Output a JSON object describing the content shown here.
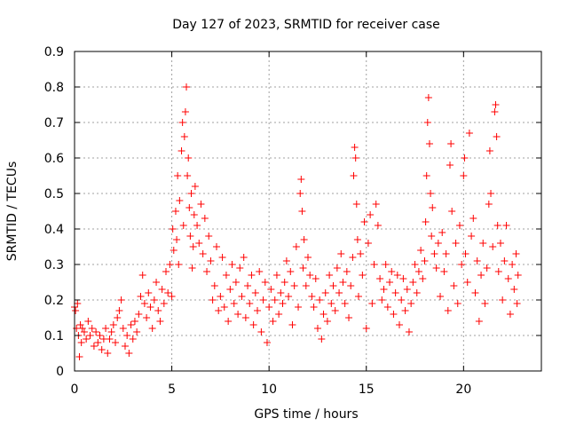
{
  "chart_data": {
    "type": "scatter",
    "title": "Day 127 of 2023, SRMTID for receiver case",
    "xlabel": "GPS time / hours",
    "ylabel": "SRMTID / TECUs",
    "xlim": [
      0,
      24
    ],
    "ylim": [
      0,
      0.9
    ],
    "xticks": [
      0,
      5,
      10,
      15,
      20
    ],
    "xtick_labels": [
      "0",
      "5",
      "10",
      "15",
      "20"
    ],
    "yticks": [
      0,
      0.1,
      0.2,
      0.3,
      0.4,
      0.5,
      0.6,
      0.7,
      0.8,
      0.9
    ],
    "ytick_labels": [
      "0",
      "0.1",
      "0.2",
      "0.3",
      "0.4",
      "0.5",
      "0.6",
      "0.7",
      "0.8",
      "0.9"
    ],
    "grid": true,
    "marker": "+",
    "color": "#ff0000",
    "series": [
      {
        "name": "SRMTID",
        "points": [
          [
            0.0,
            0.18
          ],
          [
            0.05,
            0.17
          ],
          [
            0.1,
            0.12
          ],
          [
            0.15,
            0.19
          ],
          [
            0.2,
            0.1
          ],
          [
            0.25,
            0.04
          ],
          [
            0.3,
            0.13
          ],
          [
            0.35,
            0.08
          ],
          [
            0.4,
            0.12
          ],
          [
            0.5,
            0.11
          ],
          [
            0.6,
            0.09
          ],
          [
            0.7,
            0.14
          ],
          [
            0.8,
            0.1
          ],
          [
            0.9,
            0.12
          ],
          [
            1.0,
            0.07
          ],
          [
            1.1,
            0.11
          ],
          [
            1.2,
            0.08
          ],
          [
            1.3,
            0.1
          ],
          [
            1.4,
            0.06
          ],
          [
            1.5,
            0.09
          ],
          [
            1.6,
            0.12
          ],
          [
            1.7,
            0.05
          ],
          [
            1.8,
            0.09
          ],
          [
            1.9,
            0.11
          ],
          [
            2.0,
            0.13
          ],
          [
            2.1,
            0.08
          ],
          [
            2.2,
            0.15
          ],
          [
            2.3,
            0.17
          ],
          [
            2.4,
            0.2
          ],
          [
            2.5,
            0.12
          ],
          [
            2.6,
            0.07
          ],
          [
            2.7,
            0.1
          ],
          [
            2.8,
            0.05
          ],
          [
            2.9,
            0.13
          ],
          [
            3.0,
            0.09
          ],
          [
            3.1,
            0.14
          ],
          [
            3.2,
            0.11
          ],
          [
            3.3,
            0.16
          ],
          [
            3.4,
            0.21
          ],
          [
            3.5,
            0.27
          ],
          [
            3.6,
            0.19
          ],
          [
            3.7,
            0.15
          ],
          [
            3.8,
            0.22
          ],
          [
            3.9,
            0.18
          ],
          [
            4.0,
            0.12
          ],
          [
            4.1,
            0.2
          ],
          [
            4.2,
            0.25
          ],
          [
            4.3,
            0.17
          ],
          [
            4.4,
            0.14
          ],
          [
            4.5,
            0.23
          ],
          [
            4.6,
            0.19
          ],
          [
            4.7,
            0.28
          ],
          [
            4.8,
            0.22
          ],
          [
            4.9,
            0.3
          ],
          [
            5.0,
            0.21
          ],
          [
            5.05,
            0.4
          ],
          [
            5.1,
            0.34
          ],
          [
            5.2,
            0.45
          ],
          [
            5.25,
            0.37
          ],
          [
            5.3,
            0.55
          ],
          [
            5.35,
            0.3
          ],
          [
            5.4,
            0.48
          ],
          [
            5.5,
            0.62
          ],
          [
            5.55,
            0.7
          ],
          [
            5.6,
            0.41
          ],
          [
            5.65,
            0.66
          ],
          [
            5.7,
            0.73
          ],
          [
            5.75,
            0.8
          ],
          [
            5.8,
            0.55
          ],
          [
            5.85,
            0.6
          ],
          [
            5.9,
            0.46
          ],
          [
            5.95,
            0.38
          ],
          [
            6.0,
            0.5
          ],
          [
            6.05,
            0.29
          ],
          [
            6.1,
            0.35
          ],
          [
            6.15,
            0.44
          ],
          [
            6.2,
            0.52
          ],
          [
            6.3,
            0.41
          ],
          [
            6.4,
            0.36
          ],
          [
            6.5,
            0.47
          ],
          [
            6.6,
            0.33
          ],
          [
            6.7,
            0.43
          ],
          [
            6.8,
            0.28
          ],
          [
            6.9,
            0.38
          ],
          [
            7.0,
            0.31
          ],
          [
            7.1,
            0.2
          ],
          [
            7.2,
            0.24
          ],
          [
            7.3,
            0.35
          ],
          [
            7.4,
            0.17
          ],
          [
            7.5,
            0.21
          ],
          [
            7.6,
            0.32
          ],
          [
            7.7,
            0.18
          ],
          [
            7.8,
            0.27
          ],
          [
            7.9,
            0.14
          ],
          [
            8.0,
            0.23
          ],
          [
            8.1,
            0.3
          ],
          [
            8.2,
            0.19
          ],
          [
            8.3,
            0.25
          ],
          [
            8.4,
            0.16
          ],
          [
            8.5,
            0.29
          ],
          [
            8.6,
            0.21
          ],
          [
            8.7,
            0.32
          ],
          [
            8.8,
            0.15
          ],
          [
            8.9,
            0.24
          ],
          [
            9.0,
            0.19
          ],
          [
            9.1,
            0.27
          ],
          [
            9.2,
            0.13
          ],
          [
            9.3,
            0.22
          ],
          [
            9.4,
            0.17
          ],
          [
            9.5,
            0.28
          ],
          [
            9.6,
            0.11
          ],
          [
            9.7,
            0.2
          ],
          [
            9.8,
            0.25
          ],
          [
            9.9,
            0.08
          ],
          [
            10.0,
            0.18
          ],
          [
            10.1,
            0.23
          ],
          [
            10.2,
            0.14
          ],
          [
            10.3,
            0.2
          ],
          [
            10.4,
            0.27
          ],
          [
            10.5,
            0.16
          ],
          [
            10.6,
            0.22
          ],
          [
            10.7,
            0.19
          ],
          [
            10.8,
            0.25
          ],
          [
            10.9,
            0.31
          ],
          [
            11.0,
            0.21
          ],
          [
            11.1,
            0.28
          ],
          [
            11.2,
            0.13
          ],
          [
            11.3,
            0.24
          ],
          [
            11.4,
            0.35
          ],
          [
            11.5,
            0.18
          ],
          [
            11.6,
            0.5
          ],
          [
            11.65,
            0.54
          ],
          [
            11.7,
            0.45
          ],
          [
            11.75,
            0.29
          ],
          [
            11.8,
            0.37
          ],
          [
            11.9,
            0.24
          ],
          [
            12.0,
            0.32
          ],
          [
            12.1,
            0.27
          ],
          [
            12.2,
            0.21
          ],
          [
            12.3,
            0.18
          ],
          [
            12.4,
            0.26
          ],
          [
            12.5,
            0.12
          ],
          [
            12.6,
            0.2
          ],
          [
            12.7,
            0.09
          ],
          [
            12.8,
            0.16
          ],
          [
            12.9,
            0.22
          ],
          [
            13.0,
            0.14
          ],
          [
            13.1,
            0.27
          ],
          [
            13.2,
            0.19
          ],
          [
            13.3,
            0.24
          ],
          [
            13.4,
            0.17
          ],
          [
            13.5,
            0.29
          ],
          [
            13.6,
            0.22
          ],
          [
            13.7,
            0.33
          ],
          [
            13.8,
            0.25
          ],
          [
            13.9,
            0.19
          ],
          [
            14.0,
            0.28
          ],
          [
            14.1,
            0.15
          ],
          [
            14.2,
            0.24
          ],
          [
            14.3,
            0.32
          ],
          [
            14.35,
            0.55
          ],
          [
            14.4,
            0.63
          ],
          [
            14.45,
            0.6
          ],
          [
            14.5,
            0.47
          ],
          [
            14.55,
            0.37
          ],
          [
            14.6,
            0.21
          ],
          [
            14.7,
            0.33
          ],
          [
            14.8,
            0.27
          ],
          [
            14.9,
            0.42
          ],
          [
            15.0,
            0.12
          ],
          [
            15.1,
            0.36
          ],
          [
            15.2,
            0.44
          ],
          [
            15.3,
            0.19
          ],
          [
            15.4,
            0.3
          ],
          [
            15.5,
            0.47
          ],
          [
            15.6,
            0.41
          ],
          [
            15.7,
            0.26
          ],
          [
            15.8,
            0.2
          ],
          [
            15.9,
            0.23
          ],
          [
            16.0,
            0.3
          ],
          [
            16.1,
            0.18
          ],
          [
            16.2,
            0.25
          ],
          [
            16.3,
            0.28
          ],
          [
            16.4,
            0.16
          ],
          [
            16.5,
            0.22
          ],
          [
            16.6,
            0.27
          ],
          [
            16.7,
            0.13
          ],
          [
            16.8,
            0.2
          ],
          [
            16.9,
            0.26
          ],
          [
            17.0,
            0.17
          ],
          [
            17.1,
            0.23
          ],
          [
            17.2,
            0.11
          ],
          [
            17.3,
            0.19
          ],
          [
            17.4,
            0.25
          ],
          [
            17.5,
            0.3
          ],
          [
            17.6,
            0.22
          ],
          [
            17.7,
            0.28
          ],
          [
            17.8,
            0.34
          ],
          [
            17.9,
            0.26
          ],
          [
            18.0,
            0.31
          ],
          [
            18.05,
            0.42
          ],
          [
            18.1,
            0.55
          ],
          [
            18.15,
            0.7
          ],
          [
            18.2,
            0.77
          ],
          [
            18.25,
            0.64
          ],
          [
            18.3,
            0.5
          ],
          [
            18.35,
            0.38
          ],
          [
            18.4,
            0.46
          ],
          [
            18.5,
            0.33
          ],
          [
            18.6,
            0.29
          ],
          [
            18.7,
            0.36
          ],
          [
            18.8,
            0.21
          ],
          [
            18.9,
            0.39
          ],
          [
            19.0,
            0.28
          ],
          [
            19.1,
            0.33
          ],
          [
            19.2,
            0.17
          ],
          [
            19.3,
            0.58
          ],
          [
            19.35,
            0.64
          ],
          [
            19.4,
            0.45
          ],
          [
            19.5,
            0.24
          ],
          [
            19.6,
            0.36
          ],
          [
            19.7,
            0.19
          ],
          [
            19.8,
            0.41
          ],
          [
            19.9,
            0.3
          ],
          [
            20.0,
            0.55
          ],
          [
            20.05,
            0.6
          ],
          [
            20.1,
            0.33
          ],
          [
            20.2,
            0.25
          ],
          [
            20.3,
            0.67
          ],
          [
            20.4,
            0.38
          ],
          [
            20.5,
            0.43
          ],
          [
            20.6,
            0.22
          ],
          [
            20.7,
            0.31
          ],
          [
            20.8,
            0.14
          ],
          [
            20.9,
            0.27
          ],
          [
            21.0,
            0.36
          ],
          [
            21.1,
            0.19
          ],
          [
            21.2,
            0.29
          ],
          [
            21.3,
            0.47
          ],
          [
            21.35,
            0.62
          ],
          [
            21.4,
            0.5
          ],
          [
            21.5,
            0.35
          ],
          [
            21.6,
            0.73
          ],
          [
            21.65,
            0.75
          ],
          [
            21.7,
            0.66
          ],
          [
            21.75,
            0.41
          ],
          [
            21.8,
            0.28
          ],
          [
            21.9,
            0.36
          ],
          [
            22.0,
            0.2
          ],
          [
            22.1,
            0.31
          ],
          [
            22.2,
            0.41
          ],
          [
            22.3,
            0.26
          ],
          [
            22.4,
            0.16
          ],
          [
            22.5,
            0.3
          ],
          [
            22.6,
            0.23
          ],
          [
            22.7,
            0.33
          ],
          [
            22.75,
            0.19
          ],
          [
            22.8,
            0.27
          ]
        ]
      }
    ]
  }
}
